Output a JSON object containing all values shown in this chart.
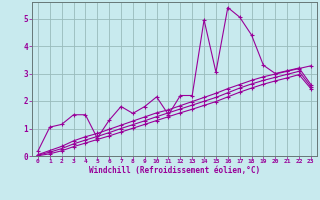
{
  "xlabel": "Windchill (Refroidissement éolien,°C)",
  "bg_color": "#c8eaee",
  "line_color": "#990099",
  "grid_color": "#99bbbb",
  "xlim": [
    -0.5,
    23.5
  ],
  "ylim": [
    0,
    5.6
  ],
  "yticks": [
    0,
    1,
    2,
    3,
    4,
    5
  ],
  "xticks": [
    0,
    1,
    2,
    3,
    4,
    5,
    6,
    7,
    8,
    9,
    10,
    11,
    12,
    13,
    14,
    15,
    16,
    17,
    18,
    19,
    20,
    21,
    22,
    23
  ],
  "series1_x": [
    0,
    1,
    2,
    3,
    4,
    5,
    6,
    7,
    8,
    9,
    10,
    11,
    12,
    13,
    14,
    15,
    16,
    17,
    18,
    19,
    20,
    21,
    22,
    23
  ],
  "series1_y": [
    0.18,
    1.05,
    1.15,
    1.5,
    1.5,
    0.65,
    1.3,
    1.8,
    1.55,
    1.8,
    2.15,
    1.5,
    2.2,
    2.2,
    4.95,
    3.05,
    5.4,
    5.05,
    4.4,
    3.3,
    3.0,
    3.1,
    3.2,
    2.6
  ],
  "series2_x": [
    0,
    1,
    2,
    3,
    4,
    5,
    6,
    7,
    8,
    9,
    10,
    11,
    12,
    13,
    14,
    15,
    16,
    17,
    18,
    19,
    20,
    21,
    22,
    23
  ],
  "series2_y": [
    0.05,
    0.2,
    0.35,
    0.55,
    0.7,
    0.82,
    0.97,
    1.12,
    1.27,
    1.42,
    1.57,
    1.68,
    1.83,
    1.98,
    2.13,
    2.28,
    2.45,
    2.6,
    2.75,
    2.88,
    2.98,
    3.08,
    3.18,
    3.28
  ],
  "series3_x": [
    0,
    1,
    2,
    3,
    4,
    5,
    6,
    7,
    8,
    9,
    10,
    11,
    12,
    13,
    14,
    15,
    16,
    17,
    18,
    19,
    20,
    21,
    22,
    23
  ],
  "series3_y": [
    0.03,
    0.14,
    0.27,
    0.44,
    0.58,
    0.71,
    0.85,
    1.0,
    1.14,
    1.28,
    1.43,
    1.57,
    1.71,
    1.85,
    1.99,
    2.13,
    2.3,
    2.47,
    2.62,
    2.75,
    2.86,
    2.97,
    3.08,
    2.52
  ],
  "series4_x": [
    0,
    1,
    2,
    3,
    4,
    5,
    6,
    7,
    8,
    9,
    10,
    11,
    12,
    13,
    14,
    15,
    16,
    17,
    18,
    19,
    20,
    21,
    22,
    23
  ],
  "series4_y": [
    0.01,
    0.08,
    0.19,
    0.34,
    0.47,
    0.6,
    0.73,
    0.87,
    1.01,
    1.15,
    1.29,
    1.43,
    1.57,
    1.7,
    1.84,
    1.98,
    2.15,
    2.32,
    2.47,
    2.61,
    2.73,
    2.84,
    2.96,
    2.45
  ]
}
